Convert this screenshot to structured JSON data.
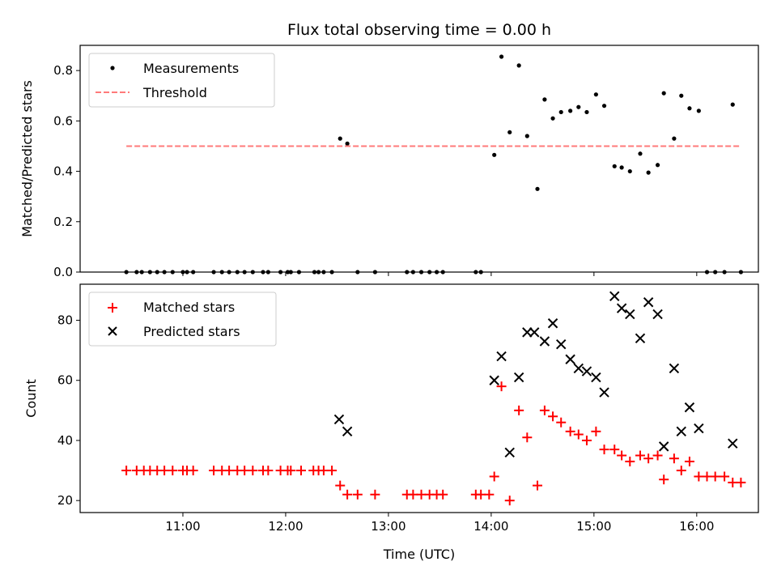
{
  "chart_data": [
    {
      "type": "scatter",
      "title": "Flux total observing time = 0.00 h",
      "xlabel": "",
      "ylabel": "Matched/Predicted stars",
      "xlim": [
        10.0,
        16.6
      ],
      "ylim": [
        0.0,
        0.9
      ],
      "yticks": [
        0.0,
        0.2,
        0.4,
        0.6,
        0.8
      ],
      "ytick_labels": [
        "0.0",
        "0.2",
        "0.4",
        "0.6",
        "0.8"
      ],
      "xticks": [
        11,
        12,
        13,
        14,
        15,
        16
      ],
      "legend": {
        "position": "top-left",
        "entries": [
          "Measurements",
          "Threshold"
        ]
      },
      "series": [
        {
          "name": "Measurements",
          "marker": "dot",
          "color": "#000000",
          "x": [
            10.45,
            10.55,
            10.6,
            10.68,
            10.75,
            10.82,
            10.9,
            11.0,
            11.04,
            11.1,
            11.3,
            11.38,
            11.45,
            11.53,
            11.6,
            11.68,
            11.78,
            11.83,
            11.95,
            12.02,
            12.05,
            12.13,
            12.28,
            12.32,
            12.37,
            12.45,
            12.53,
            12.6,
            12.7,
            12.87,
            13.18,
            13.24,
            13.32,
            13.4,
            13.47,
            13.53,
            13.85,
            13.9,
            14.03,
            14.1,
            14.18,
            14.27,
            14.35,
            14.45,
            14.52,
            14.6,
            14.68,
            14.77,
            14.85,
            14.93,
            15.02,
            15.1,
            15.2,
            15.27,
            15.35,
            15.45,
            15.53,
            15.62,
            15.68,
            15.78,
            15.85,
            15.93,
            16.02,
            16.1,
            16.18,
            16.27,
            16.35,
            16.43
          ],
          "y": [
            0,
            0,
            0,
            0,
            0,
            0,
            0,
            0,
            0,
            0,
            0,
            0,
            0,
            0,
            0,
            0,
            0,
            0,
            0,
            0,
            0,
            0,
            0,
            0,
            0,
            0,
            0.53,
            0.51,
            0,
            0,
            0,
            0,
            0,
            0,
            0,
            0,
            0,
            0,
            0.465,
            0.855,
            0.555,
            0.82,
            0.54,
            0.33,
            0.685,
            0.61,
            0.635,
            0.64,
            0.655,
            0.635,
            0.705,
            0.66,
            0.42,
            0.415,
            0.4,
            0.47,
            0.395,
            0.425,
            0.71,
            0.53,
            0.7,
            0.65,
            0.64,
            0,
            0,
            0,
            0.665,
            0
          ]
        },
        {
          "name": "Threshold",
          "type": "line",
          "style": "dashed",
          "color": "#ff7a7a",
          "x": [
            10.45,
            16.43
          ],
          "y": [
            0.5,
            0.5
          ]
        }
      ]
    },
    {
      "type": "scatter",
      "title": "",
      "xlabel": "Time (UTC)",
      "ylabel": "Count",
      "xlim": [
        10.0,
        16.6
      ],
      "ylim": [
        16.0,
        92.0
      ],
      "yticks": [
        20,
        40,
        60,
        80
      ],
      "ytick_labels": [
        "20",
        "40",
        "60",
        "80"
      ],
      "xticks": [
        11,
        12,
        13,
        14,
        15,
        16
      ],
      "xtick_labels": [
        "11:00",
        "12:00",
        "13:00",
        "14:00",
        "15:00",
        "16:00"
      ],
      "legend": {
        "position": "top-left",
        "entries": [
          "Matched stars",
          "Predicted stars"
        ]
      },
      "series": [
        {
          "name": "Matched stars",
          "marker": "plus",
          "color": "#ff0000",
          "x": [
            10.45,
            10.55,
            10.62,
            10.68,
            10.75,
            10.82,
            10.9,
            11.0,
            11.04,
            11.1,
            11.3,
            11.38,
            11.45,
            11.53,
            11.6,
            11.68,
            11.78,
            11.83,
            11.95,
            12.02,
            12.05,
            12.15,
            12.27,
            12.32,
            12.37,
            12.45,
            12.53,
            12.6,
            12.7,
            12.87,
            13.18,
            13.24,
            13.32,
            13.4,
            13.47,
            13.53,
            13.85,
            13.9,
            13.98,
            14.03,
            14.1,
            14.18,
            14.27,
            14.35,
            14.45,
            14.52,
            14.6,
            14.68,
            14.77,
            14.85,
            14.93,
            15.02,
            15.1,
            15.2,
            15.27,
            15.35,
            15.45,
            15.53,
            15.62,
            15.68,
            15.78,
            15.85,
            15.93,
            16.02,
            16.1,
            16.18,
            16.27,
            16.35,
            16.43
          ],
          "y": [
            30,
            30,
            30,
            30,
            30,
            30,
            30,
            30,
            30,
            30,
            30,
            30,
            30,
            30,
            30,
            30,
            30,
            30,
            30,
            30,
            30,
            30,
            30,
            30,
            30,
            30,
            25,
            22,
            22,
            22,
            22,
            22,
            22,
            22,
            22,
            22,
            22,
            22,
            22,
            28,
            58,
            20,
            50,
            41,
            25,
            50,
            48,
            46,
            43,
            42,
            40,
            43,
            37,
            37,
            35,
            33,
            35,
            34,
            35,
            27,
            34,
            30,
            33,
            28,
            28,
            28,
            28,
            26,
            26
          ]
        },
        {
          "name": "Predicted stars",
          "marker": "x",
          "color": "#000000",
          "x": [
            12.52,
            12.6,
            14.03,
            14.1,
            14.18,
            14.27,
            14.35,
            14.42,
            14.52,
            14.6,
            14.68,
            14.77,
            14.85,
            14.93,
            15.02,
            15.1,
            15.2,
            15.27,
            15.35,
            15.45,
            15.53,
            15.62,
            15.68,
            15.78,
            15.85,
            15.93,
            16.02,
            16.35
          ],
          "y": [
            47,
            43,
            60,
            68,
            36,
            61,
            76,
            76,
            73,
            79,
            72,
            67,
            64,
            63,
            61,
            56,
            88,
            84,
            82,
            74,
            86,
            82,
            38,
            64,
            43,
            51,
            44,
            39
          ]
        }
      ]
    }
  ]
}
